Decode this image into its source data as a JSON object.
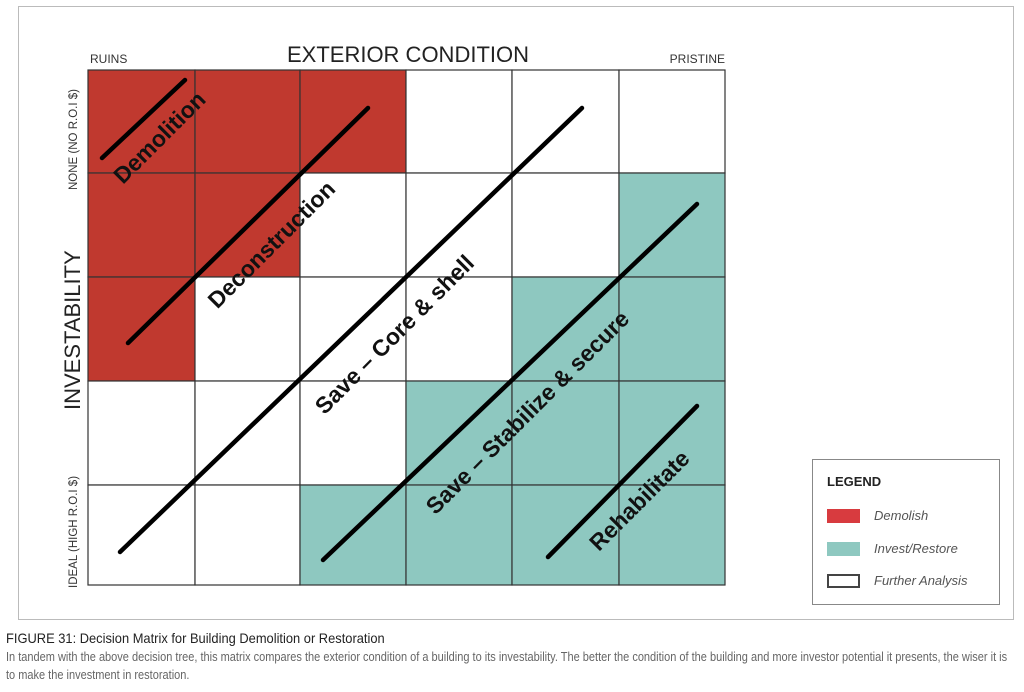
{
  "figure": {
    "x_axis_title": "EXTERIOR CONDITION",
    "x_axis_low": "RUINS",
    "x_axis_high": "PRISTINE",
    "y_axis_title": "INVESTABILITY",
    "y_axis_low": "NONE (NO R.O.I $)",
    "y_axis_high": "IDEAL (HIGH R.O.I $)",
    "grid": [
      [
        "demolish",
        "demolish",
        "demolish",
        "further",
        "further",
        "further"
      ],
      [
        "demolish",
        "demolish",
        "further",
        "further",
        "further",
        "invest"
      ],
      [
        "demolish",
        "further",
        "further",
        "further",
        "invest",
        "invest"
      ],
      [
        "further",
        "further",
        "further",
        "invest",
        "invest",
        "invest"
      ],
      [
        "further",
        "further",
        "invest",
        "invest",
        "invest",
        "invest"
      ]
    ],
    "zones": [
      "Demolition",
      "Deconstruction",
      "Save – Core & shell",
      "Save – Stabilize & secure",
      "Rehabilitate"
    ]
  },
  "legend": {
    "title": "LEGEND",
    "items": [
      {
        "label": "Demolish",
        "color": "#c0392f"
      },
      {
        "label": "Invest/Restore",
        "color": "#8ec8c0"
      },
      {
        "label": "Further Analysis",
        "color": "#ffffff"
      }
    ]
  },
  "caption": {
    "title": "FIGURE 31: Decision Matrix for Building Demolition or Restoration",
    "body": "In tandem with the above decision tree, this matrix compares the exterior condition of a building to its investability. The better the condition of the building and more investor potential it presents, the wiser it is to make the investment in restoration."
  }
}
